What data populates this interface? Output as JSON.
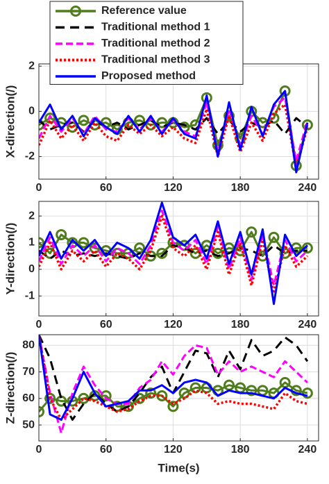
{
  "chart_data": [
    {
      "type": "line",
      "ylabel": "X-direction(/)",
      "x": [
        0,
        10,
        20,
        30,
        40,
        50,
        60,
        70,
        80,
        90,
        100,
        110,
        120,
        130,
        140,
        150,
        160,
        170,
        180,
        190,
        200,
        210,
        220,
        230,
        240
      ],
      "xlim": [
        0,
        250
      ],
      "xticks": [
        0,
        60,
        120,
        180,
        240
      ],
      "ylim": [
        -3,
        2.1
      ],
      "yticks": [
        -2,
        0,
        2
      ],
      "grid": true,
      "legend": "upper center",
      "series": [
        {
          "name": "Reference value",
          "color": "#4f7d1b",
          "linestyle": "solid",
          "marker": "circle",
          "values": [
            -0.6,
            -0.3,
            -0.5,
            -0.7,
            -0.4,
            -0.6,
            -0.5,
            -0.8,
            -0.5,
            -0.4,
            -0.6,
            -0.5,
            -0.5,
            -0.7,
            -0.6,
            0.6,
            -1.5,
            -0.2,
            -1.2,
            0.0,
            -0.5,
            -0.3,
            0.9,
            -2.4,
            -0.6
          ]
        },
        {
          "name": "Traditional method 1",
          "color": "#000000",
          "linestyle": "dashed",
          "values": [
            -0.4,
            -0.8,
            -0.6,
            -0.5,
            -0.9,
            -0.4,
            -0.7,
            -0.5,
            -0.8,
            -0.6,
            -0.4,
            -0.7,
            -0.5,
            -0.6,
            -0.8,
            -0.3,
            -1.0,
            -0.4,
            -0.9,
            -0.5,
            -0.7,
            -0.4,
            -1.0,
            -0.3,
            -0.7
          ]
        },
        {
          "name": "Traditional method 2",
          "color": "#ff00ff",
          "linestyle": "dashed",
          "values": [
            -1.2,
            -0.2,
            -0.9,
            -0.3,
            -1.0,
            -0.2,
            -0.8,
            -0.9,
            -0.3,
            -0.8,
            -0.3,
            -0.9,
            -0.4,
            -0.9,
            -1.1,
            0.4,
            -1.8,
            0.1,
            -1.5,
            -0.2,
            -1.0,
            0.2,
            0.6,
            -2.2,
            -0.4
          ]
        },
        {
          "name": "Traditional method 3",
          "color": "#ff0000",
          "linestyle": "dotted",
          "values": [
            -1.5,
            -0.4,
            -1.2,
            -0.6,
            -1.3,
            -0.5,
            -1.1,
            -1.3,
            -0.6,
            -1.0,
            -0.6,
            -1.1,
            -0.7,
            -1.2,
            -1.4,
            0.1,
            -2.0,
            -0.2,
            -1.8,
            -0.5,
            -1.3,
            -0.1,
            0.3,
            -2.5,
            -0.7
          ]
        },
        {
          "name": "Proposed method",
          "color": "#0000ff",
          "linestyle": "solid",
          "values": [
            -0.5,
            0.3,
            -0.8,
            -0.2,
            -1.1,
            -0.3,
            -0.7,
            -1.0,
            -0.2,
            -0.9,
            -0.2,
            -1.0,
            -0.3,
            -1.0,
            -1.2,
            0.7,
            -2.0,
            0.4,
            -1.7,
            0.2,
            -1.1,
            0.3,
            0.9,
            -2.7,
            -0.5
          ]
        }
      ]
    },
    {
      "type": "line",
      "ylabel": "Y-direction(/)",
      "x": [
        0,
        10,
        20,
        30,
        40,
        50,
        60,
        70,
        80,
        90,
        100,
        110,
        120,
        130,
        140,
        150,
        160,
        170,
        180,
        190,
        200,
        210,
        220,
        230,
        240
      ],
      "xlim": [
        0,
        250
      ],
      "xticks": [
        0,
        60,
        120,
        180,
        240
      ],
      "ylim": [
        -1.75,
        2.55
      ],
      "yticks": [
        -1,
        0,
        1,
        2
      ],
      "grid": true,
      "series": [
        {
          "name": "Reference value",
          "color": "#4f7d1b",
          "linestyle": "solid",
          "marker": "circle",
          "values": [
            1.0,
            0.6,
            1.3,
            1.0,
            1.0,
            0.8,
            0.7,
            0.6,
            0.6,
            0.8,
            0.5,
            0.6,
            1.0,
            0.9,
            0.6,
            0.9,
            0.6,
            0.8,
            0.7,
            1.4,
            0.5,
            1.2,
            0.6,
            0.8,
            0.8
          ]
        },
        {
          "name": "Traditional method 1",
          "color": "#000000",
          "linestyle": "dashed",
          "values": [
            0.7,
            0.4,
            0.7,
            0.5,
            0.6,
            0.5,
            0.6,
            0.5,
            0.4,
            0.6,
            0.5,
            0.5,
            0.9,
            0.8,
            0.6,
            0.7,
            0.5,
            0.6,
            0.8,
            0.7,
            0.5,
            0.9,
            0.6,
            0.7,
            0.7
          ]
        },
        {
          "name": "Traditional method 2",
          "color": "#ff00ff",
          "linestyle": "dashed",
          "values": [
            0.3,
            1.2,
            0.2,
            0.9,
            0.5,
            0.9,
            0.3,
            0.8,
            0.6,
            0.2,
            0.9,
            2.2,
            1.0,
            0.7,
            1.1,
            0.2,
            1.6,
            0.0,
            1.2,
            -0.4,
            1.3,
            -0.6,
            1.1,
            0.3,
            0.7
          ]
        },
        {
          "name": "Traditional method 3",
          "color": "#ff0000",
          "linestyle": "dotted",
          "values": [
            0.1,
            1.0,
            0.0,
            0.7,
            0.3,
            0.7,
            0.1,
            0.6,
            0.4,
            0.0,
            0.7,
            2.0,
            0.8,
            0.5,
            0.9,
            0.0,
            1.4,
            -0.2,
            1.0,
            -0.6,
            1.1,
            -0.9,
            0.9,
            0.1,
            0.5
          ]
        },
        {
          "name": "Proposed method",
          "color": "#0000ff",
          "linestyle": "solid",
          "values": [
            0.5,
            1.4,
            0.4,
            1.1,
            0.7,
            1.1,
            0.5,
            1.0,
            0.8,
            0.4,
            1.1,
            2.5,
            1.2,
            0.9,
            1.3,
            0.4,
            1.8,
            0.2,
            1.4,
            -0.2,
            1.5,
            -1.3,
            1.3,
            0.5,
            0.9
          ]
        }
      ]
    },
    {
      "type": "line",
      "ylabel": "Z-direction(/)",
      "xlabel": "Time(s)",
      "x": [
        0,
        10,
        20,
        30,
        40,
        50,
        60,
        70,
        80,
        90,
        100,
        110,
        120,
        130,
        140,
        150,
        160,
        170,
        180,
        190,
        200,
        210,
        220,
        230,
        240
      ],
      "xlim": [
        0,
        250
      ],
      "xticks": [
        0,
        60,
        120,
        180,
        240
      ],
      "ylim": [
        44,
        84
      ],
      "yticks": [
        50,
        60,
        70,
        80
      ],
      "grid": true,
      "series": [
        {
          "name": "Reference value",
          "color": "#4f7d1b",
          "linestyle": "solid",
          "marker": "circle",
          "values": [
            55,
            60,
            59,
            59,
            60,
            61,
            61,
            57,
            57,
            60,
            62,
            61,
            57,
            62,
            64,
            64,
            63,
            65,
            64,
            63,
            63,
            62,
            66,
            63,
            62
          ]
        },
        {
          "name": "Traditional method 1",
          "color": "#000000",
          "linestyle": "dashed",
          "values": [
            84,
            75,
            60,
            52,
            58,
            62,
            58,
            55,
            57,
            62,
            68,
            72,
            62,
            70,
            78,
            77,
            68,
            78,
            71,
            82,
            76,
            78,
            83,
            80,
            74
          ]
        },
        {
          "name": "Traditional method 2",
          "color": "#ff00ff",
          "linestyle": "dashed",
          "values": [
            84,
            62,
            47,
            62,
            72,
            65,
            60,
            58,
            58,
            64,
            67,
            74,
            69,
            76,
            80,
            79,
            69,
            74,
            70,
            72,
            70,
            68,
            74,
            70,
            66
          ]
        },
        {
          "name": "Traditional method 3",
          "color": "#ff0000",
          "linestyle": "dotted",
          "values": [
            84,
            60,
            52,
            56,
            60,
            59,
            57,
            55,
            56,
            59,
            61,
            61,
            58,
            60,
            63,
            62,
            58,
            59,
            58,
            58,
            57,
            56,
            62,
            59,
            58
          ]
        },
        {
          "name": "Proposed method",
          "color": "#0000ff",
          "linestyle": "solid",
          "values": [
            84,
            54,
            52,
            60,
            70,
            62,
            57,
            58,
            59,
            63,
            63,
            65,
            62,
            66,
            67,
            66,
            61,
            63,
            62,
            62,
            61,
            60,
            64,
            62,
            61
          ]
        }
      ]
    }
  ]
}
